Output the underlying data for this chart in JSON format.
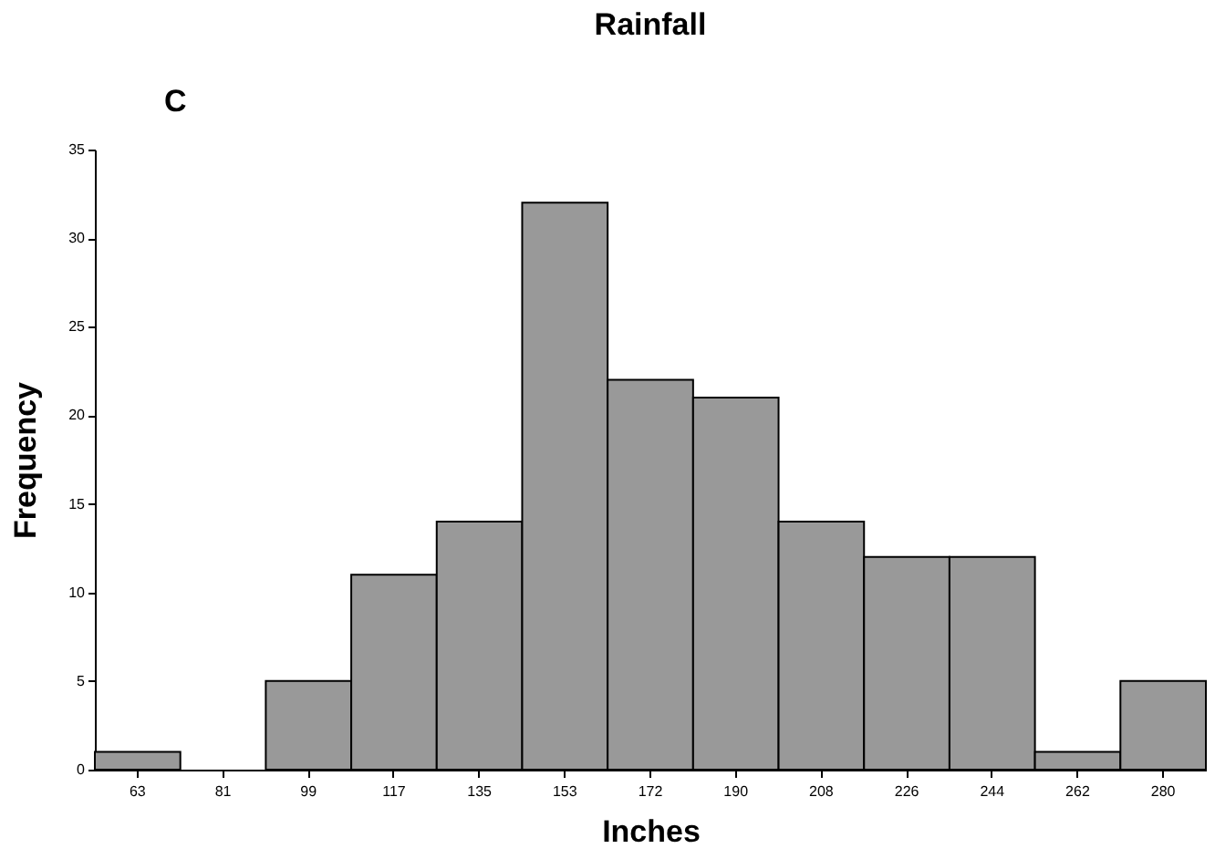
{
  "chart_data": {
    "type": "bar",
    "title": "Rainfall",
    "xlabel": "Inches",
    "ylabel": "Frequency",
    "annotations": [
      "C"
    ],
    "categories": [
      "63",
      "81",
      "99",
      "117",
      "135",
      "153",
      "172",
      "190",
      "208",
      "226",
      "244",
      "262",
      "280"
    ],
    "values": [
      1,
      0,
      5,
      11,
      14,
      32,
      22,
      21,
      14,
      12,
      12,
      1,
      5
    ],
    "color": "#999999",
    "ylim": [
      0,
      35
    ],
    "yticks": [
      0,
      5,
      10,
      15,
      20,
      25,
      30,
      35
    ],
    "grid": false
  }
}
